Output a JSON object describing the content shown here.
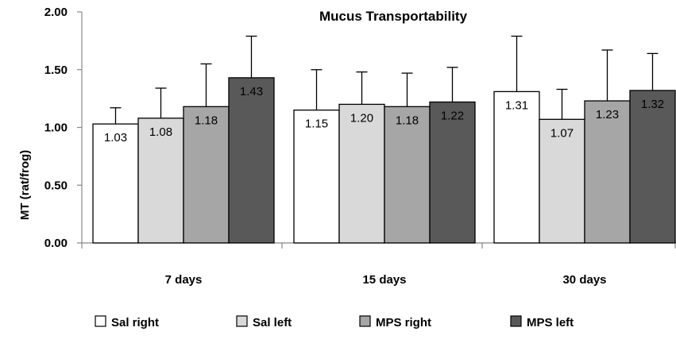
{
  "chart_data": {
    "type": "bar",
    "title": "Mucus Transportability",
    "xlabel": "",
    "ylabel": "MT (rat/frog)",
    "ylim": [
      0,
      2
    ],
    "yticks": [
      "0.00",
      "0.50",
      "1.00",
      "1.50",
      "2.00"
    ],
    "ytick_values": [
      0,
      0.5,
      1,
      1.5,
      2
    ],
    "categories": [
      "7 days",
      "15 days",
      "30 days"
    ],
    "series": [
      {
        "name": "Sal right",
        "color": "#ffffff",
        "values": [
          1.03,
          1.15,
          1.31
        ],
        "labels": [
          "1.03",
          "1.15",
          "1.31"
        ],
        "error_upper": [
          1.17,
          1.5,
          1.79
        ]
      },
      {
        "name": "Sal left",
        "color": "#d9d9d9",
        "values": [
          1.08,
          1.2,
          1.07
        ],
        "labels": [
          "1.08",
          "1.20",
          "1.07"
        ],
        "error_upper": [
          1.34,
          1.48,
          1.33
        ]
      },
      {
        "name": "MPS right",
        "color": "#a6a6a6",
        "values": [
          1.18,
          1.18,
          1.23
        ],
        "labels": [
          "1.18",
          "1.18",
          "1.23"
        ],
        "error_upper": [
          1.55,
          1.47,
          1.67
        ]
      },
      {
        "name": "MPS left",
        "color": "#595959",
        "values": [
          1.43,
          1.22,
          1.32
        ],
        "labels": [
          "1.43",
          "1.22",
          "1.32"
        ],
        "error_upper": [
          1.79,
          1.52,
          1.64
        ]
      }
    ],
    "grid": false,
    "legend_position": "bottom"
  }
}
